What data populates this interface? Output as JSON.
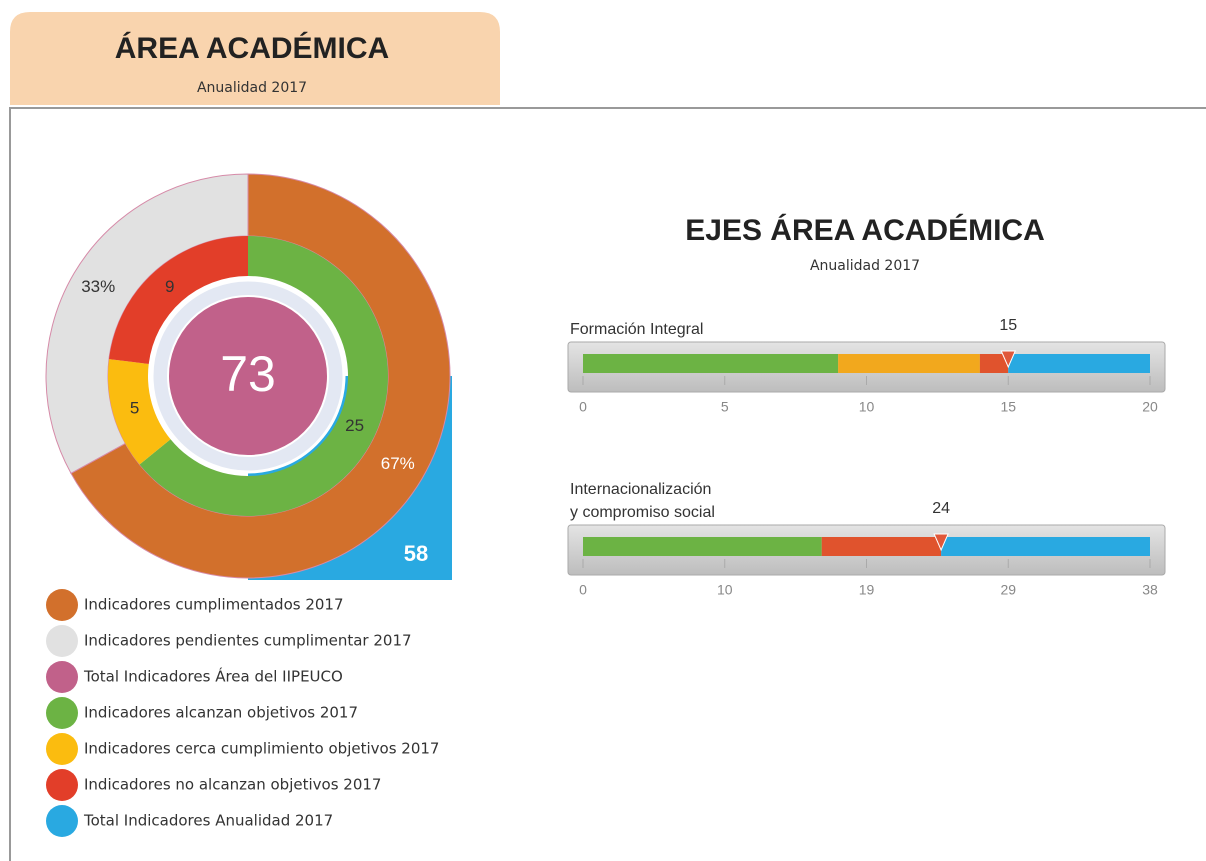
{
  "header": {
    "title": "ÁREA ACADÉMICA",
    "subtitle": "Anualidad 2017"
  },
  "section": {
    "title": "EJES ÁREA ACADÉMICA",
    "subtitle": "Anualidad 2017"
  },
  "chart_data": [
    {
      "type": "donut",
      "center": {
        "value": 73,
        "color": "#c1618a"
      },
      "corner": {
        "value": 58,
        "color": "#29a9e1"
      },
      "rings": [
        {
          "values": [
            67,
            33
          ],
          "value_labels": [
            "67%",
            "33%"
          ],
          "colors": [
            "#d2702c",
            "#e1e1e1"
          ]
        },
        {
          "values": [
            25,
            5,
            9
          ],
          "colors": [
            "#6cb344",
            "#fbbc0f",
            "#e23e29"
          ]
        }
      ],
      "legend": [
        {
          "label": "Indicadores cumplimentados 2017",
          "color": "#d2702c"
        },
        {
          "label": "Indicadores pendientes cumplimentar 2017",
          "color": "#e1e1e1"
        },
        {
          "label": "Total Indicadores Área del IIPEUCO",
          "color": "#c1618a"
        },
        {
          "label": "Indicadores alcanzan objetivos 2017",
          "color": "#6cb344"
        },
        {
          "label": "Indicadores cerca cumplimiento objetivos 2017",
          "color": "#fbbc0f"
        },
        {
          "label": "Indicadores no alcanzan objetivos 2017",
          "color": "#e23e29"
        },
        {
          "label": "Total Indicadores Anualidad 2017",
          "color": "#29a9e1"
        }
      ]
    },
    {
      "type": "bullet",
      "label": [
        "Formación Integral"
      ],
      "marker": 15,
      "marker_color": "#e0583a",
      "xlim": [
        0,
        20
      ],
      "xticks": [
        0,
        5,
        10,
        15,
        20
      ],
      "segments": [
        {
          "value": 9,
          "color": "#6cb344"
        },
        {
          "value": 5,
          "color": "#f2a81d"
        },
        {
          "value": 1,
          "color": "#e0532d"
        },
        {
          "value": 5,
          "color": "#29a9e1"
        }
      ]
    },
    {
      "type": "bullet",
      "label": [
        "Internacionalización",
        "y compromiso social"
      ],
      "marker": 24,
      "marker_color": "#e0583a",
      "xlim": [
        0,
        38
      ],
      "xticks": [
        0,
        {
          "value": 9.5,
          "label": "10"
        },
        19,
        {
          "value": 28.5,
          "label": "29"
        },
        38
      ],
      "segments": [
        {
          "value": 16,
          "color": "#6cb344"
        },
        {
          "value": 8,
          "color": "#e0532d"
        },
        {
          "value": 14,
          "color": "#29a9e1"
        }
      ]
    }
  ]
}
